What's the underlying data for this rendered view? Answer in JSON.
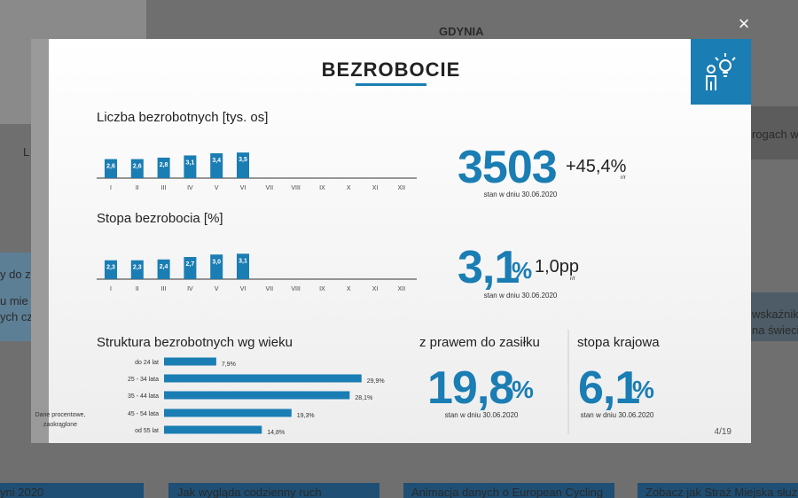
{
  "background": {
    "tiles": [
      "GDYNIA",
      "rogach w",
      "L",
      "y do z",
      "u mie",
      "ych cz",
      "wskaźniki",
      "na świecie",
      "yni 2020",
      "Jak wygląda codzienny ruch",
      "Animacja danych o European Cycling",
      "Zobacz jak Straż Miejska służ"
    ]
  },
  "close": "×",
  "header": {
    "title": "BEZROBOCIE"
  },
  "chart_data": [
    {
      "type": "bar",
      "title": "Liczba bezrobotnych [tys. os]",
      "categories": [
        "I",
        "II",
        "III",
        "IV",
        "V",
        "VI",
        "VII",
        "VIII",
        "IX",
        "X",
        "XI",
        "XII"
      ],
      "values": [
        2.6,
        2.6,
        2.8,
        3.1,
        3.4,
        3.5,
        null,
        null,
        null,
        null,
        null,
        null
      ],
      "value_labels": [
        "2,6",
        "2,6",
        "2,8",
        "3,1",
        "3,4",
        "3,5",
        null,
        null,
        null,
        null,
        null,
        null
      ],
      "color": "#1a7db3",
      "ylim": [
        0,
        4
      ]
    },
    {
      "type": "bar",
      "title": "Stopa bezrobocia [%]",
      "categories": [
        "I",
        "II",
        "III",
        "IV",
        "V",
        "VI",
        "VII",
        "VIII",
        "IX",
        "X",
        "XI",
        "XII"
      ],
      "values": [
        2.3,
        2.3,
        2.4,
        2.7,
        3.0,
        3.1,
        null,
        null,
        null,
        null,
        null,
        null
      ],
      "value_labels": [
        "2,3",
        "2,3",
        "2,4",
        "2,7",
        "3,0",
        "3,1",
        null,
        null,
        null,
        null,
        null,
        null
      ],
      "color": "#1a7db3",
      "ylim": [
        0,
        4
      ]
    },
    {
      "type": "hbar",
      "title": "Struktura bezrobotnych wg wieku",
      "categories": [
        "do 24 lat",
        "25 - 34 lata",
        "35 - 44 lata",
        "45 - 54 lata",
        "od 55 lat"
      ],
      "values": [
        7.9,
        29.9,
        28.1,
        19.3,
        14.8
      ],
      "value_labels": [
        "7,9%",
        "29,9%",
        "28,1%",
        "19,3%",
        "14,8%"
      ],
      "color": "#1a7db3",
      "xlim": [
        0,
        30
      ],
      "note_lines": [
        "Dane procentowe,",
        "zaokrąglone"
      ]
    }
  ],
  "stats": {
    "count": {
      "value": "3503",
      "change": "+45,4%",
      "change_unit": "r/r",
      "date": "stan w dniu 30.06.2020"
    },
    "rate": {
      "value": "3,1",
      "unit": "%",
      "change": "1,0pp",
      "change_unit": "r/r",
      "date": "stan w dniu 30.06.2020"
    },
    "benefit": {
      "label": "z prawem do zasiłku",
      "value": "19,8",
      "unit": "%",
      "date": "stan w dniu 30.06.2020"
    },
    "national": {
      "label": "stopa krajowa",
      "value": "6,1",
      "unit": "%",
      "date": "stan w dniu 30.06.2020"
    }
  },
  "counter": "4/19"
}
